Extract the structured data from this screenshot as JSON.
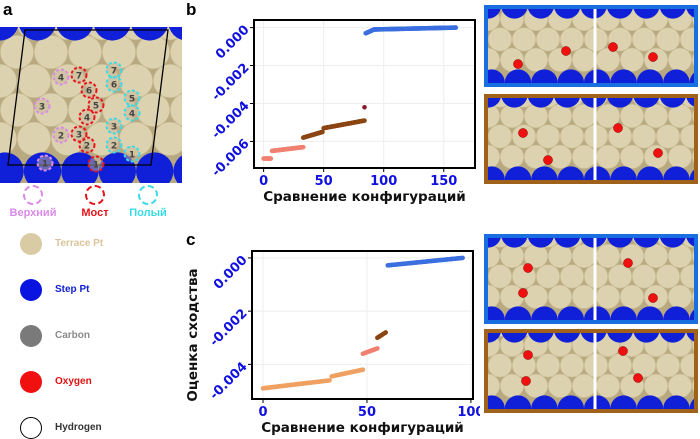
{
  "panels": {
    "a": "a",
    "b": "b",
    "c": "c"
  },
  "site_legend": [
    {
      "label": "Верхний",
      "color": "#d98be8"
    },
    {
      "label": "Мост",
      "color": "#e8141c"
    },
    {
      "label": "Полый",
      "color": "#38dce8"
    }
  ],
  "sites": {
    "top": [
      "1",
      "2",
      "3",
      "4"
    ],
    "bridge": [
      "1",
      "2",
      "3",
      "4",
      "5",
      "6",
      "7"
    ],
    "hollow": [
      "1",
      "2",
      "3",
      "4",
      "5",
      "6",
      "7"
    ]
  },
  "atom_legend": [
    {
      "label": "Terrace Pt",
      "color": "#d9cba3",
      "text_color": "#d9c49a"
    },
    {
      "label": "Step Pt",
      "color": "#0a14e0",
      "text_color": "#1020d0"
    },
    {
      "label": "Carbon",
      "color": "#7a7a7a",
      "text_color": "#8a8a8a"
    },
    {
      "label": "Oxygen",
      "color": "#f01010",
      "text_color": "#e01010"
    },
    {
      "label": "Hydrogen",
      "color": "#ffffff",
      "text_color": "#333333"
    }
  ],
  "chart_data": [
    {
      "type": "scatter",
      "panel": "b",
      "xlabel": "Сравнение конфигураций",
      "ylabel": "",
      "xlim": [
        -8,
        176
      ],
      "ylim": [
        -0.0074,
        0.0004
      ],
      "xticks": [
        "0",
        "50",
        "100",
        "150"
      ],
      "xtick_values": [
        0,
        50,
        100,
        150
      ],
      "yticks": [
        "0.000",
        "-0.002",
        "-0.004",
        "-0.006"
      ],
      "ytick_values": [
        0,
        -0.002,
        -0.004,
        -0.006
      ],
      "series": [
        {
          "name": "salmon",
          "color": "#f08070",
          "segments": [
            [
              0,
              6,
              -0.0069,
              -0.0069
            ],
            [
              7,
              33,
              -0.0065,
              -0.0063
            ]
          ]
        },
        {
          "name": "brown",
          "color": "#8b4513",
          "segments": [
            [
              33,
              49,
              -0.0058,
              -0.0055
            ],
            [
              50,
              84,
              -0.0053,
              -0.0049
            ]
          ]
        },
        {
          "name": "outlier",
          "color": "#8b1a2a",
          "segments": [
            [
              84,
              84,
              -0.0042,
              -0.0042
            ]
          ]
        },
        {
          "name": "blue",
          "color": "#3b6fe0",
          "segments": [
            [
              85,
              92,
              -0.0003,
              -0.0001
            ],
            [
              92,
              160,
              -0.0001,
              0.0
            ]
          ]
        }
      ]
    },
    {
      "type": "scatter",
      "panel": "c",
      "xlabel": "Сравнение конфигураций",
      "ylabel": "Оценка сходства",
      "xlim": [
        -5.3,
        101
      ],
      "ylim": [
        -0.0053,
        0.00026
      ],
      "xticks": [
        "0",
        "50",
        "100"
      ],
      "xtick_values": [
        0,
        50,
        100
      ],
      "yticks": [
        "0.000",
        "-0.002",
        "-0.004"
      ],
      "ytick_values": [
        0,
        -0.002,
        -0.004
      ],
      "series": [
        {
          "name": "orange",
          "color": "#f0a060",
          "segments": [
            [
              0,
              32,
              -0.0049,
              -0.0046
            ],
            [
              33,
              48,
              -0.00445,
              -0.0042
            ]
          ]
        },
        {
          "name": "salmon",
          "color": "#f08070",
          "segments": [
            [
              48,
              55,
              -0.0036,
              -0.0034
            ]
          ]
        },
        {
          "name": "brown",
          "color": "#8b4513",
          "segments": [
            [
              55,
              59,
              -0.003,
              -0.0028
            ]
          ]
        },
        {
          "name": "blue",
          "color": "#3b6fe0",
          "segments": [
            [
              60,
              96,
              -0.00028,
              0.0
            ]
          ]
        }
      ]
    }
  ],
  "structure_images": [
    {
      "border": "#1a6fe0"
    },
    {
      "border": "#a0621a"
    },
    {
      "border": "#1a6fe0"
    },
    {
      "border": "#a0621a"
    }
  ]
}
